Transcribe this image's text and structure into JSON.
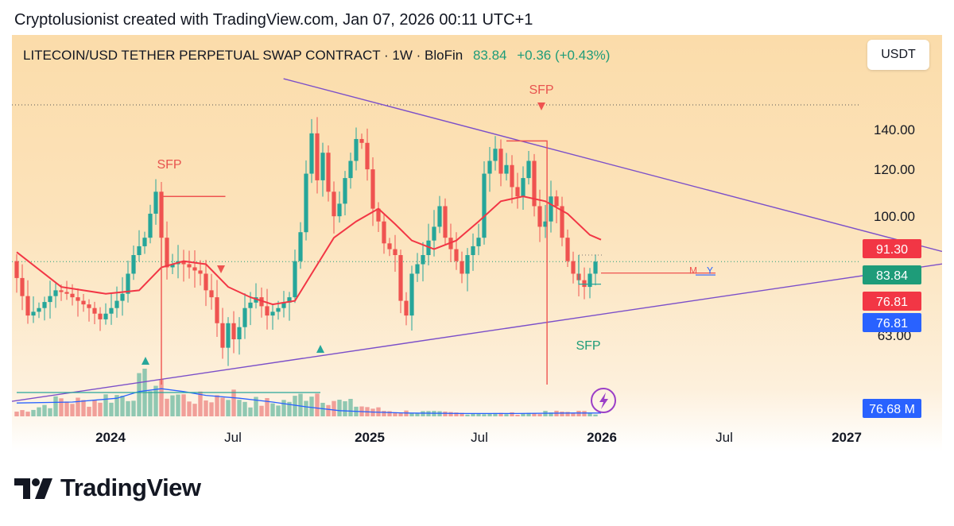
{
  "header": {
    "credit": "Cryptolusionist created with TradingView.com, Jan 07, 2026 00:11 UTC+1"
  },
  "legend": {
    "symbol": "LITECOIN/USD TETHER PERPETUAL SWAP CONTRACT · 1W · BloFin",
    "price": "83.84",
    "change": "+0.36 (+0.43%)"
  },
  "toolbar": {
    "currency": "USDT"
  },
  "brand": {
    "name": "TradingView"
  },
  "colors": {
    "up": "#26a69a",
    "down": "#ef5350",
    "trend": "#7b4fc9",
    "ma": "#f23645",
    "vol_ma": "#2962ff"
  },
  "chart_data": {
    "type": "candlestick",
    "timeframe": "1W",
    "ylim": [
      52,
      158
    ],
    "y_scale": "log",
    "y_ticks": [
      {
        "v": 140,
        "label": "140.00"
      },
      {
        "v": 120,
        "label": "120.00"
      },
      {
        "v": 100,
        "label": "100.00"
      },
      {
        "v": 63,
        "label": "63.00"
      }
    ],
    "x_ticks": [
      {
        "label": "2024",
        "bold": true
      },
      {
        "label": "Jul",
        "bold": false
      },
      {
        "label": "2025",
        "bold": true
      },
      {
        "label": "Jul",
        "bold": false
      },
      {
        "label": "2026",
        "bold": true
      },
      {
        "label": "Jul",
        "bold": false
      },
      {
        "label": "2027",
        "bold": true
      }
    ],
    "price_tags": [
      {
        "label": "91.30",
        "color": "#f23645"
      },
      {
        "label": "83.84",
        "color": "#1e9c79"
      },
      {
        "label": "76.81",
        "color": "#f23645"
      },
      {
        "label": "76.81",
        "color": "#2962ff"
      },
      {
        "label": "76.68 M",
        "color": "#2962ff"
      }
    ],
    "annotations": [
      {
        "text": "SFP",
        "color": "#e8534f"
      },
      {
        "text": "SFP",
        "color": "#e8534f"
      },
      {
        "text": "SFP",
        "color": "#1e9c79"
      }
    ],
    "mini_labels": [
      {
        "text": "M",
        "color": "#ef5350"
      },
      {
        "text": "Y",
        "color": "#2962ff"
      }
    ],
    "price_path": [
      [
        0,
        84
      ],
      [
        3,
        68
      ],
      [
        5,
        70
      ],
      [
        8,
        75
      ],
      [
        10,
        74
      ],
      [
        12,
        72
      ],
      [
        14,
        70
      ],
      [
        16,
        67
      ],
      [
        18,
        70
      ],
      [
        20,
        74
      ],
      [
        22,
        86
      ],
      [
        24,
        92
      ],
      [
        26,
        110
      ],
      [
        27,
        92
      ],
      [
        28,
        82
      ],
      [
        30,
        84
      ],
      [
        32,
        82
      ],
      [
        34,
        80
      ],
      [
        35,
        75
      ],
      [
        36,
        73
      ],
      [
        37,
        66
      ],
      [
        38,
        60
      ],
      [
        39,
        66
      ],
      [
        40,
        62
      ],
      [
        41,
        65
      ],
      [
        42,
        70
      ],
      [
        44,
        73
      ],
      [
        46,
        68
      ],
      [
        48,
        70
      ],
      [
        50,
        73
      ],
      [
        51,
        84
      ],
      [
        52,
        94
      ],
      [
        53,
        118
      ],
      [
        54,
        138
      ],
      [
        55,
        115
      ],
      [
        56,
        128
      ],
      [
        57,
        110
      ],
      [
        58,
        100
      ],
      [
        59,
        105
      ],
      [
        60,
        116
      ],
      [
        61,
        124
      ],
      [
        62,
        135
      ],
      [
        63,
        133
      ],
      [
        64,
        120
      ],
      [
        65,
        103
      ],
      [
        66,
        98
      ],
      [
        67,
        90
      ],
      [
        68,
        88
      ],
      [
        69,
        86
      ],
      [
        70,
        72
      ],
      [
        71,
        68
      ],
      [
        72,
        80
      ],
      [
        74,
        86
      ],
      [
        76,
        96
      ],
      [
        77,
        104
      ],
      [
        78,
        92
      ],
      [
        79,
        88
      ],
      [
        80,
        84
      ],
      [
        81,
        80
      ],
      [
        82,
        86
      ],
      [
        84,
        92
      ],
      [
        85,
        118
      ],
      [
        86,
        124
      ],
      [
        87,
        130
      ],
      [
        88,
        118
      ],
      [
        89,
        122
      ],
      [
        90,
        112
      ],
      [
        91,
        108
      ],
      [
        92,
        116
      ],
      [
        93,
        124
      ],
      [
        94,
        104
      ],
      [
        95,
        96
      ],
      [
        96,
        98
      ],
      [
        97,
        108
      ],
      [
        98,
        104
      ],
      [
        99,
        92
      ],
      [
        100,
        84
      ],
      [
        101,
        80
      ],
      [
        102,
        78
      ],
      [
        103,
        76
      ],
      [
        104,
        80
      ],
      [
        105,
        83.84
      ]
    ],
    "ma_path": [
      [
        0,
        87
      ],
      [
        8,
        76
      ],
      [
        16,
        74
      ],
      [
        22,
        75
      ],
      [
        26,
        82
      ],
      [
        30,
        84
      ],
      [
        34,
        83
      ],
      [
        38,
        76
      ],
      [
        42,
        73
      ],
      [
        46,
        71
      ],
      [
        50,
        72
      ],
      [
        53,
        80
      ],
      [
        57,
        92
      ],
      [
        61,
        98
      ],
      [
        65,
        103
      ],
      [
        68,
        97
      ],
      [
        71,
        91
      ],
      [
        75,
        88
      ],
      [
        79,
        91
      ],
      [
        83,
        98
      ],
      [
        87,
        106
      ],
      [
        91,
        108
      ],
      [
        95,
        106
      ],
      [
        99,
        101
      ],
      [
        103,
        93
      ],
      [
        105,
        91.3
      ]
    ],
    "volume_path": [
      [
        0,
        0.1
      ],
      [
        4,
        0.2
      ],
      [
        8,
        0.35
      ],
      [
        12,
        0.3
      ],
      [
        16,
        0.4
      ],
      [
        20,
        0.45
      ],
      [
        22,
        0.65
      ],
      [
        24,
        0.8
      ],
      [
        26,
        0.55
      ],
      [
        30,
        0.4
      ],
      [
        34,
        0.35
      ],
      [
        38,
        0.5
      ],
      [
        42,
        0.3
      ],
      [
        46,
        0.28
      ],
      [
        50,
        0.35
      ],
      [
        53,
        0.55
      ],
      [
        55,
        0.45
      ],
      [
        58,
        0.3
      ],
      [
        62,
        0.22
      ],
      [
        66,
        0.12
      ],
      [
        70,
        0.1
      ],
      [
        75,
        0.08
      ],
      [
        80,
        0.07
      ],
      [
        85,
        0.06
      ],
      [
        90,
        0.06
      ],
      [
        95,
        0.08
      ],
      [
        100,
        0.1
      ],
      [
        105,
        0.06
      ]
    ],
    "volume_ma_path": [
      [
        0,
        0.28
      ],
      [
        10,
        0.3
      ],
      [
        18,
        0.38
      ],
      [
        22,
        0.52
      ],
      [
        26,
        0.58
      ],
      [
        30,
        0.52
      ],
      [
        34,
        0.44
      ],
      [
        40,
        0.38
      ],
      [
        46,
        0.3
      ],
      [
        52,
        0.2
      ],
      [
        58,
        0.12
      ],
      [
        64,
        0.09
      ],
      [
        70,
        0.07
      ],
      [
        80,
        0.06
      ],
      [
        90,
        0.06
      ],
      [
        100,
        0.07
      ],
      [
        105,
        0.07
      ]
    ],
    "trendlines": [
      {
        "from": [
          0.292,
          0.105
        ],
        "to": [
          1.0,
          0.52
        ]
      },
      {
        "from": [
          0.0,
          0.88
        ],
        "to": [
          1.0,
          0.55
        ]
      }
    ]
  }
}
